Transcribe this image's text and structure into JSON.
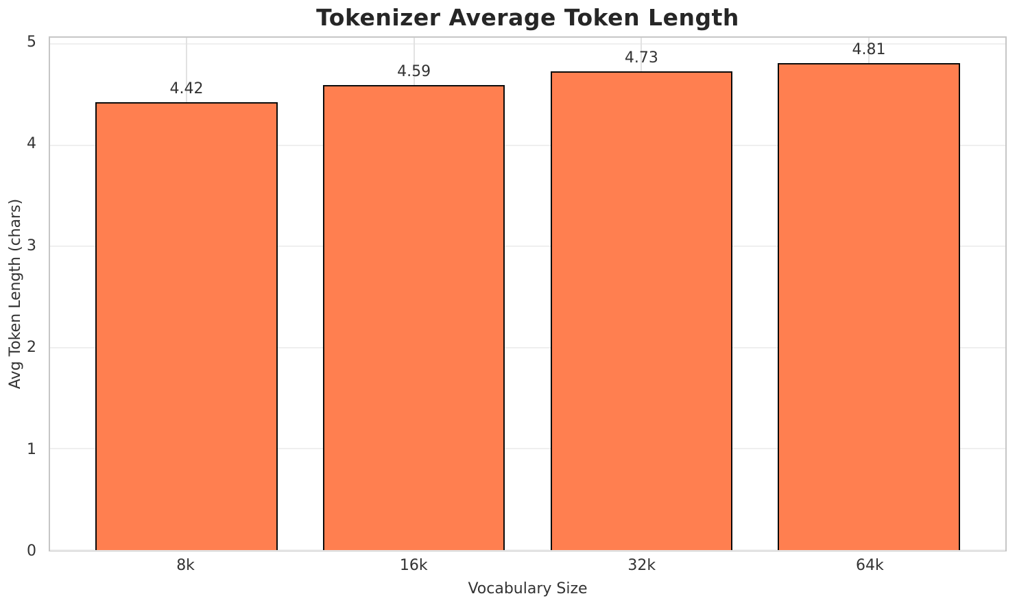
{
  "chart_data": {
    "type": "bar",
    "title": "Tokenizer Average Token Length",
    "xlabel": "Vocabulary Size",
    "ylabel": "Avg Token Length (chars)",
    "categories": [
      "8k",
      "16k",
      "32k",
      "64k"
    ],
    "values": [
      4.42,
      4.59,
      4.73,
      4.81
    ],
    "value_labels": [
      "4.42",
      "4.59",
      "4.73",
      "4.81"
    ],
    "yticks": [
      0,
      1,
      2,
      3,
      4,
      5
    ],
    "ylim": [
      0,
      5.06
    ],
    "xlim": [
      -0.6,
      3.6
    ],
    "bar_width": 0.8,
    "grid": true,
    "legend": "none",
    "colors": {
      "bar_fill": "#ff7f50",
      "bar_edge": "#0a0a0a",
      "grid_horizontal": "#efefef",
      "grid_vertical": "#e2e2e2",
      "spine": "#c6c6c6",
      "title_text": "#262626",
      "tick_text": "#333333",
      "background": "#ffffff"
    }
  }
}
